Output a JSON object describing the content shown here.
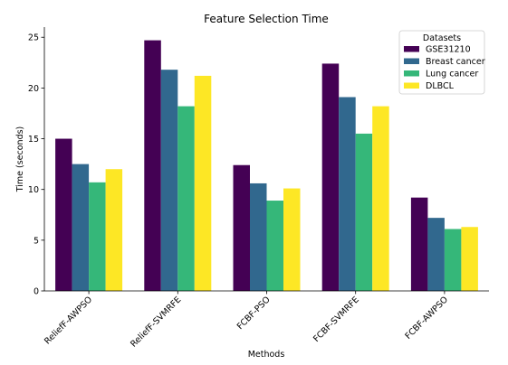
{
  "chart_data": {
    "type": "bar",
    "title": "Feature Selection Time",
    "xlabel": "Methods",
    "ylabel": "Time (seconds)",
    "ylim": [
      0,
      26
    ],
    "yticks": [
      0,
      5,
      10,
      15,
      20,
      25
    ],
    "categories": [
      "ReliefF-AWPSO",
      "ReliefF-SVMRFE",
      "FCBF-PSO",
      "FCBF-SVMRFE",
      "FCBF-AWPSO"
    ],
    "legend": {
      "title": "Datasets",
      "placement": "top-right"
    },
    "series": [
      {
        "name": "GSE31210",
        "color": "#440154",
        "values": [
          15.0,
          24.7,
          12.4,
          22.4,
          9.2
        ]
      },
      {
        "name": "Breast cancer",
        "color": "#31688e",
        "values": [
          12.5,
          21.8,
          10.6,
          19.1,
          7.2
        ]
      },
      {
        "name": "Lung cancer",
        "color": "#35b779",
        "values": [
          10.7,
          18.2,
          8.9,
          15.5,
          6.1
        ]
      },
      {
        "name": "DLBCL",
        "color": "#fde725",
        "values": [
          12.0,
          21.2,
          10.1,
          18.2,
          6.3
        ]
      }
    ],
    "grid": false
  }
}
